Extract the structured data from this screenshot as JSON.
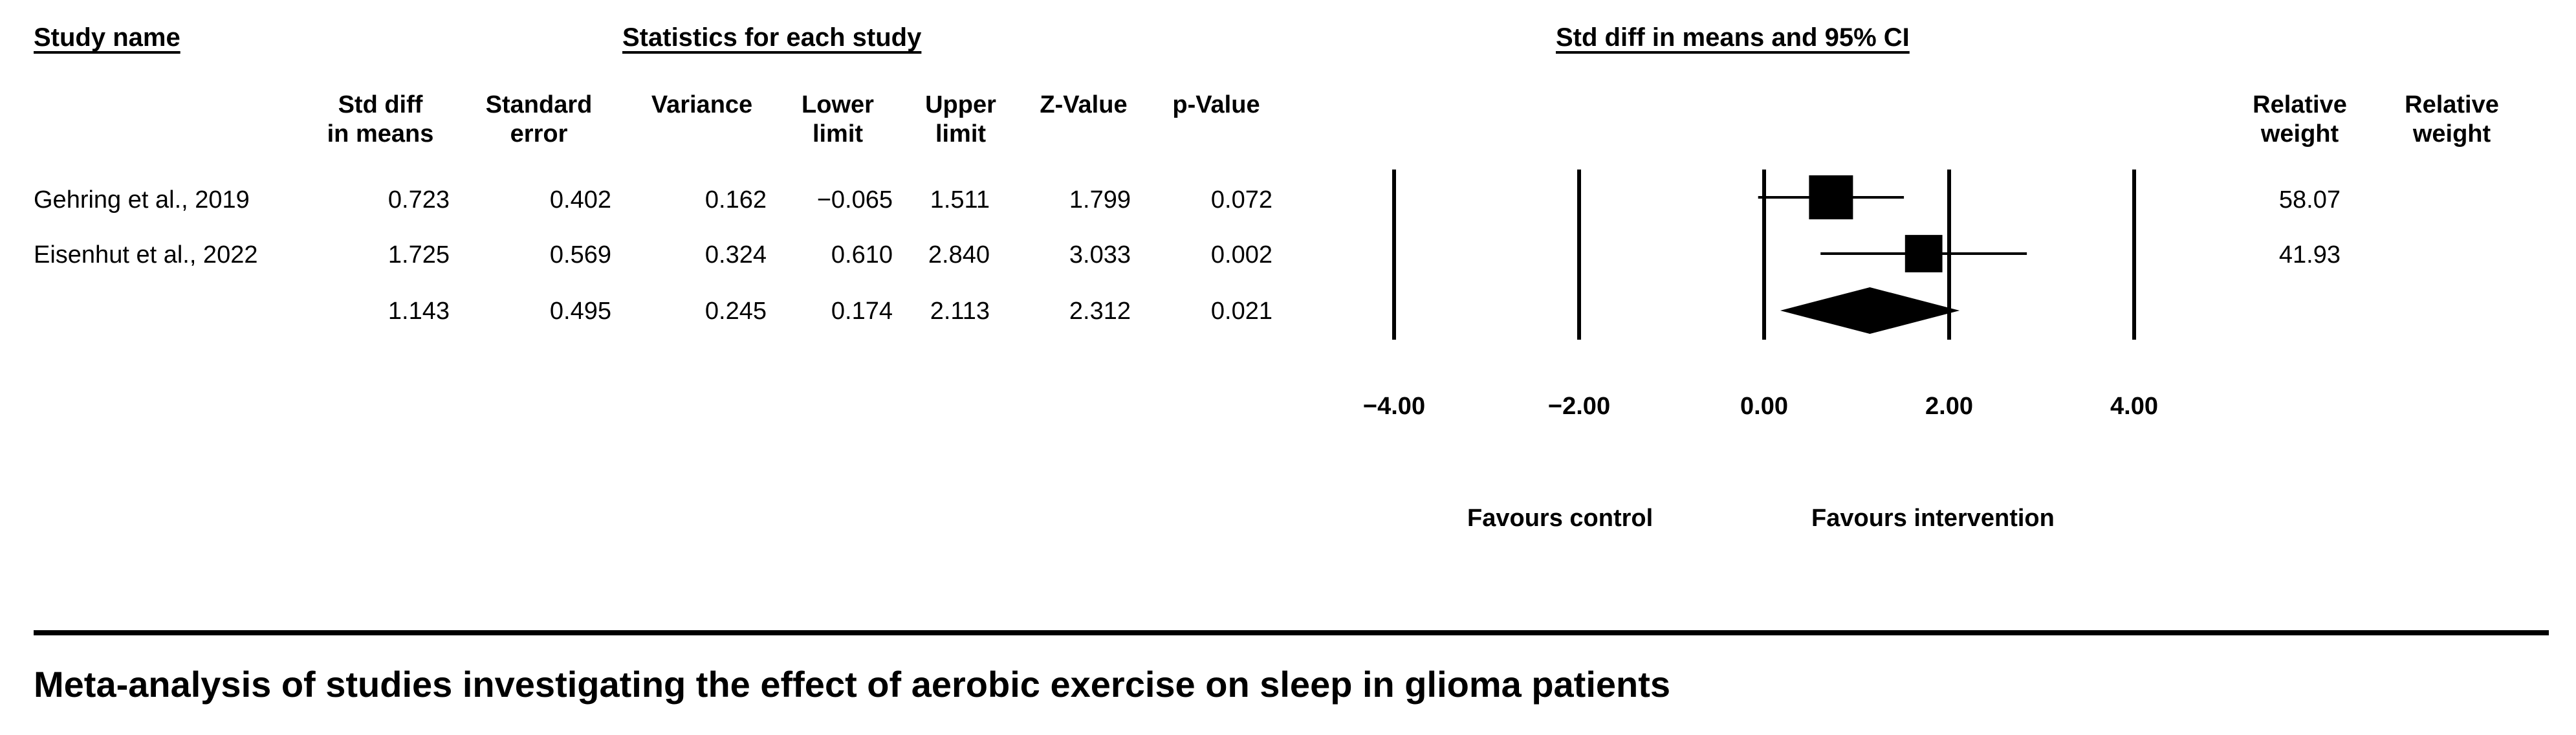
{
  "header": {
    "study_name": "Study name",
    "statistics": "Statistics for each study",
    "plot_title": "Std diff in means and 95% CI"
  },
  "columns": {
    "std_diff": [
      "Std diff",
      "in means"
    ],
    "std_err": [
      "Standard",
      "error"
    ],
    "variance": [
      "",
      "Variance"
    ],
    "lower": [
      "Lower",
      "limit"
    ],
    "upper": [
      "Upper",
      "limit"
    ],
    "z": [
      "",
      "Z-Value"
    ],
    "p": [
      "",
      "p-Value"
    ],
    "rw1": [
      "Relative",
      "weight"
    ],
    "rw2": [
      "Relative",
      "weight"
    ]
  },
  "rows": [
    {
      "name": "Gehring et al., 2019",
      "std_diff": "0.723",
      "std_err": "0.402",
      "variance": "0.162",
      "lower": "−0.065",
      "upper": "1.511",
      "z": "1.799",
      "p": "0.072",
      "weight": "58.07"
    },
    {
      "name": "Eisenhut et al., 2022",
      "std_diff": "1.725",
      "std_err": "0.569",
      "variance": "0.324",
      "lower": "0.610",
      "upper": "2.840",
      "z": "3.033",
      "p": "0.002",
      "weight": "41.93"
    },
    {
      "name": "",
      "std_diff": "1.143",
      "std_err": "0.495",
      "variance": "0.245",
      "lower": "0.174",
      "upper": "2.113",
      "z": "2.312",
      "p": "0.021",
      "weight": ""
    }
  ],
  "chart_data": {
    "type": "forest",
    "xlim": [
      -4,
      4
    ],
    "x_ticks": [
      -4,
      -2,
      0,
      2,
      4
    ],
    "x_tick_labels": [
      "−4.00",
      "−2.00",
      "0.00",
      "2.00",
      "4.00"
    ],
    "favours_left": "Favours control",
    "favours_right": "Favours intervention",
    "studies": [
      {
        "name": "Gehring et al., 2019",
        "effect": 0.723,
        "lower": -0.065,
        "upper": 1.511,
        "weight": 58.07
      },
      {
        "name": "Eisenhut et al., 2022",
        "effect": 1.725,
        "lower": 0.61,
        "upper": 2.84,
        "weight": 41.93
      }
    ],
    "summary": {
      "effect": 1.143,
      "lower": 0.174,
      "upper": 2.113
    }
  },
  "caption": "Meta-analysis of studies investigating the effect of aerobic exercise on sleep in glioma patients"
}
